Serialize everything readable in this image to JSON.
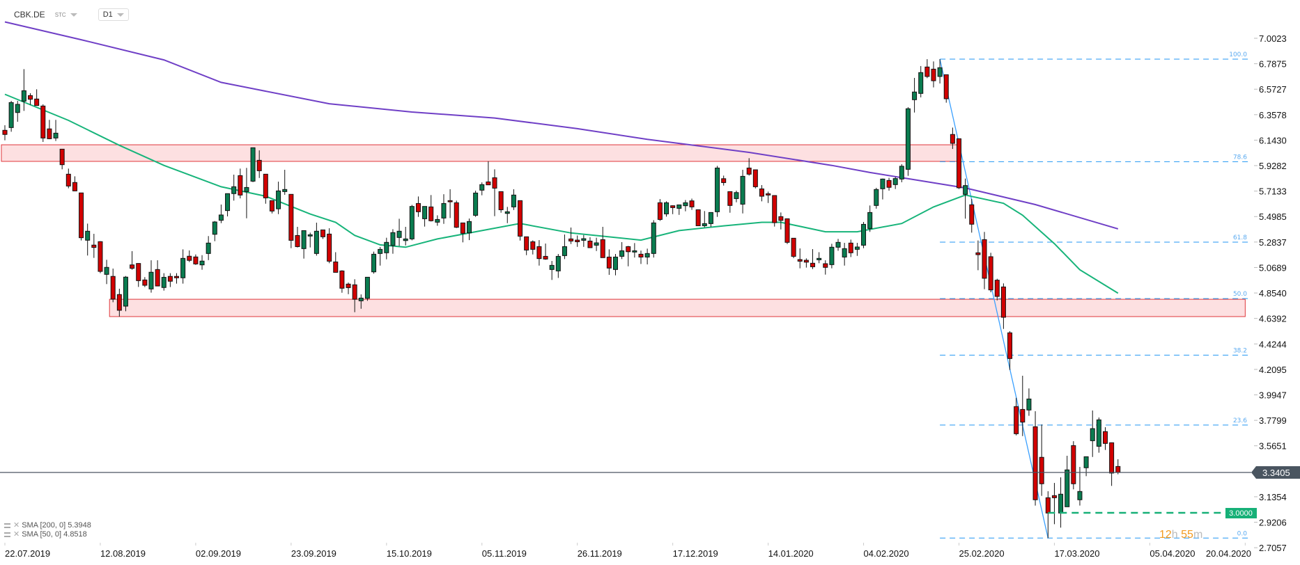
{
  "header": {
    "symbol": "CBK.DE",
    "instrument_type": "STC",
    "timeframe": "D1"
  },
  "indicators": [
    {
      "label": "SMA [200, 0] 5.3948",
      "color": "#6f3fc6"
    },
    {
      "label": "SMA [50, 0] 4.8518",
      "color": "#17b47a"
    }
  ],
  "current_price": {
    "value": "3.3405",
    "color": "#4a5560"
  },
  "alert_level": {
    "value": "3.0000",
    "color": "#16b077"
  },
  "countdown": {
    "hours": "12",
    "h": "h",
    "minutes": "55",
    "m": "m"
  },
  "colors": {
    "bull": "#0a7c50",
    "bear": "#d20000",
    "zone_fill": "#fde0e1",
    "zone_stroke": "#e0363a",
    "fib": "#2196f3"
  },
  "chart_data": {
    "type": "candlestick",
    "symbol": "CBK.DE",
    "ylim": [
      2.7057,
      7.0023
    ],
    "y_ticks": [
      "7.0023",
      "6.7875",
      "6.5727",
      "6.3578",
      "6.1430",
      "5.9282",
      "5.7133",
      "5.4985",
      "5.2837",
      "5.0689",
      "4.8540",
      "4.6392",
      "4.4244",
      "4.2095",
      "3.9947",
      "3.7799",
      "3.5651",
      "3.1354",
      "2.9206",
      "2.7057"
    ],
    "x_tick_labels": [
      "22.07.2019",
      "12.08.2019",
      "02.09.2019",
      "23.09.2019",
      "15.10.2019",
      "05.11.2019",
      "26.11.2019",
      "17.12.2019",
      "14.01.2020",
      "04.02.2020",
      "25.02.2020",
      "17.03.2020",
      "05.04.2020",
      "20.04.2020"
    ],
    "x_tick_every_bars": 15,
    "ohlc": [
      [
        6.226,
        6.269,
        6.142,
        6.191
      ],
      [
        6.249,
        6.474,
        6.214,
        6.46
      ],
      [
        6.376,
        6.474,
        6.298,
        6.445
      ],
      [
        6.472,
        6.742,
        6.39,
        6.56
      ],
      [
        6.519,
        6.539,
        6.441,
        6.488
      ],
      [
        6.49,
        6.572,
        6.435,
        6.435
      ],
      [
        6.431,
        6.445,
        6.128,
        6.161
      ],
      [
        6.238,
        6.314,
        6.151,
        6.155
      ],
      [
        6.161,
        6.314,
        6.136,
        6.202
      ],
      [
        6.067,
        6.067,
        5.897,
        5.936
      ],
      [
        5.856,
        5.903,
        5.737,
        5.756
      ],
      [
        5.786,
        5.838,
        5.713,
        5.715
      ],
      [
        5.698,
        5.698,
        5.297,
        5.32
      ],
      [
        5.299,
        5.439,
        5.17,
        5.375
      ],
      [
        5.258,
        5.353,
        5.15,
        5.238
      ],
      [
        5.287,
        5.291,
        5.021,
        5.036
      ],
      [
        5.011,
        5.134,
        4.929,
        5.07
      ],
      [
        4.994,
        5.06,
        4.776,
        4.802
      ],
      [
        4.841,
        4.89,
        4.655,
        4.708
      ],
      [
        4.743,
        4.997,
        4.7,
        4.988
      ],
      [
        5.091,
        5.207,
        5.05,
        5.062
      ],
      [
        5.103,
        5.105,
        4.905,
        4.958
      ],
      [
        4.964,
        4.988,
        4.904,
        4.919
      ],
      [
        4.888,
        5.13,
        4.857,
        5.029
      ],
      [
        5.052,
        5.13,
        4.91,
        4.913
      ],
      [
        4.9,
        5.021,
        4.874,
        4.986
      ],
      [
        4.994,
        5.021,
        4.904,
        4.953
      ],
      [
        4.994,
        5.021,
        4.933,
        4.982
      ],
      [
        4.982,
        5.222,
        4.933,
        5.146
      ],
      [
        5.164,
        5.213,
        5.115,
        5.129
      ],
      [
        5.158,
        5.179,
        5.091,
        5.099
      ],
      [
        5.091,
        5.173,
        5.05,
        5.123
      ],
      [
        5.187,
        5.334,
        5.131,
        5.275
      ],
      [
        5.349,
        5.461,
        5.291,
        5.453
      ],
      [
        5.467,
        5.6,
        5.443,
        5.512
      ],
      [
        5.549,
        5.692,
        5.5,
        5.692
      ],
      [
        5.692,
        5.852,
        5.633,
        5.75
      ],
      [
        5.844,
        5.903,
        5.652,
        5.68
      ],
      [
        5.709,
        5.909,
        5.484,
        5.744
      ],
      [
        5.797,
        6.079,
        5.789,
        6.079
      ],
      [
        5.973,
        6.057,
        5.824,
        5.885
      ],
      [
        5.856,
        5.856,
        5.607,
        5.656
      ],
      [
        5.633,
        5.633,
        5.525,
        5.545
      ],
      [
        5.564,
        5.793,
        5.519,
        5.715
      ],
      [
        5.709,
        5.893,
        5.682,
        5.727
      ],
      [
        5.686,
        5.686,
        5.232,
        5.298
      ],
      [
        5.339,
        5.412,
        5.238,
        5.245
      ],
      [
        5.228,
        5.38,
        5.144,
        5.38
      ],
      [
        5.334,
        5.363,
        5.238,
        5.345
      ],
      [
        5.187,
        5.447,
        5.169,
        5.375
      ],
      [
        5.386,
        5.388,
        5.31,
        5.328
      ],
      [
        5.351,
        5.4,
        5.105,
        5.122
      ],
      [
        5.116,
        5.198,
        5.028,
        5.028
      ],
      [
        5.04,
        5.046,
        4.856,
        4.894
      ],
      [
        4.929,
        4.942,
        4.844,
        4.899
      ],
      [
        4.923,
        4.97,
        4.692,
        4.801
      ],
      [
        4.788,
        4.842,
        4.721,
        4.811
      ],
      [
        4.809,
        4.987,
        4.788,
        4.987
      ],
      [
        5.032,
        5.203,
        5.017,
        5.181
      ],
      [
        5.187,
        5.242,
        5.085,
        5.222
      ],
      [
        5.193,
        5.32,
        5.138,
        5.281
      ],
      [
        5.255,
        5.392,
        5.185,
        5.363
      ],
      [
        5.322,
        5.48,
        5.251,
        5.375
      ],
      [
        5.296,
        5.412,
        5.255,
        5.31
      ],
      [
        5.31,
        5.597,
        5.298,
        5.584
      ],
      [
        5.609,
        5.668,
        5.496,
        5.539
      ],
      [
        5.48,
        5.584,
        5.414,
        5.584
      ],
      [
        5.58,
        5.68,
        5.457,
        5.463
      ],
      [
        5.451,
        5.509,
        5.421,
        5.474
      ],
      [
        5.486,
        5.687,
        5.437,
        5.609
      ],
      [
        5.633,
        5.729,
        5.486,
        5.623
      ],
      [
        5.615,
        5.633,
        5.402,
        5.408
      ],
      [
        5.445,
        5.447,
        5.281,
        5.357
      ],
      [
        5.361,
        5.482,
        5.3,
        5.457
      ],
      [
        5.509,
        5.717,
        5.496,
        5.697
      ],
      [
        5.721,
        5.787,
        5.678,
        5.768
      ],
      [
        5.791,
        5.965,
        5.766,
        5.766
      ],
      [
        5.826,
        5.897,
        5.502,
        5.738
      ],
      [
        5.709,
        5.709,
        5.531,
        5.556
      ],
      [
        5.525,
        5.58,
        5.443,
        5.539
      ],
      [
        5.58,
        5.729,
        5.554,
        5.68
      ],
      [
        5.633,
        5.633,
        5.296,
        5.333
      ],
      [
        5.328,
        5.328,
        5.173,
        5.216
      ],
      [
        5.286,
        5.298,
        5.179,
        5.222
      ],
      [
        5.245,
        5.3,
        5.085,
        5.144
      ],
      [
        5.163,
        5.271,
        5.134,
        5.14
      ],
      [
        5.052,
        5.124,
        4.964,
        5.087
      ],
      [
        5.04,
        5.183,
        4.981,
        5.163
      ],
      [
        5.169,
        5.347,
        5.14,
        5.245
      ],
      [
        5.31,
        5.406,
        5.267,
        5.292
      ],
      [
        5.3,
        5.339,
        5.243,
        5.286
      ],
      [
        5.298,
        5.343,
        5.243,
        5.312
      ],
      [
        5.292,
        5.324,
        5.234,
        5.236
      ],
      [
        5.257,
        5.32,
        5.208,
        5.277
      ],
      [
        5.304,
        5.412,
        5.152,
        5.152
      ],
      [
        5.157,
        5.222,
        5.007,
        5.064
      ],
      [
        5.052,
        5.183,
        5.003,
        5.157
      ],
      [
        5.163,
        5.283,
        5.14,
        5.21
      ],
      [
        5.245,
        5.251,
        5.079,
        5.202
      ],
      [
        5.199,
        5.275,
        5.153,
        5.21
      ],
      [
        5.181,
        5.212,
        5.099,
        5.157
      ],
      [
        5.157,
        5.228,
        5.095,
        5.187
      ],
      [
        5.187,
        5.468,
        5.153,
        5.445
      ],
      [
        5.615,
        5.646,
        5.462,
        5.474
      ],
      [
        5.521,
        5.627,
        5.498,
        5.615
      ],
      [
        5.59,
        5.593,
        5.519,
        5.574
      ],
      [
        5.568,
        5.597,
        5.513,
        5.597
      ],
      [
        5.59,
        5.638,
        5.543,
        5.615
      ],
      [
        5.631,
        5.65,
        5.555,
        5.58
      ],
      [
        5.556,
        5.558,
        5.421,
        5.421
      ],
      [
        5.421,
        5.545,
        5.408,
        5.439
      ],
      [
        5.439,
        5.533,
        5.412,
        5.533
      ],
      [
        5.539,
        5.926,
        5.496,
        5.908
      ],
      [
        5.818,
        5.844,
        5.76,
        5.785
      ],
      [
        5.709,
        5.709,
        5.531,
        5.592
      ],
      [
        5.65,
        5.717,
        5.619,
        5.701
      ],
      [
        5.603,
        5.893,
        5.525,
        5.838
      ],
      [
        5.908,
        5.991,
        5.844,
        5.856
      ],
      [
        5.893,
        5.893,
        5.736,
        5.75
      ],
      [
        5.732,
        5.764,
        5.627,
        5.67
      ],
      [
        5.691,
        5.709,
        5.613,
        5.68
      ],
      [
        5.676,
        5.676,
        5.414,
        5.447
      ],
      [
        5.498,
        5.533,
        5.39,
        5.466
      ],
      [
        5.48,
        5.48,
        5.267,
        5.281
      ],
      [
        5.316,
        5.316,
        5.148,
        5.163
      ],
      [
        5.136,
        5.23,
        5.062,
        5.122
      ],
      [
        5.13,
        5.146,
        5.068,
        5.114
      ],
      [
        5.105,
        5.224,
        5.056,
        5.075
      ],
      [
        5.134,
        5.198,
        5.105,
        5.146
      ],
      [
        5.101,
        5.13,
        5.009,
        5.07
      ],
      [
        5.093,
        5.269,
        5.062,
        5.24
      ],
      [
        5.24,
        5.31,
        5.21,
        5.281
      ],
      [
        5.157,
        5.277,
        5.085,
        5.228
      ],
      [
        5.275,
        5.304,
        5.157,
        5.193
      ],
      [
        5.222,
        5.277,
        5.167,
        5.242
      ],
      [
        5.257,
        5.453,
        5.232,
        5.433
      ],
      [
        5.398,
        5.592,
        5.369,
        5.533
      ],
      [
        5.592,
        5.741,
        5.565,
        5.727
      ],
      [
        5.733,
        5.819,
        5.643,
        5.815
      ],
      [
        5.803,
        5.825,
        5.717,
        5.745
      ],
      [
        5.768,
        5.833,
        5.731,
        5.819
      ],
      [
        5.815,
        5.94,
        5.788,
        5.923
      ],
      [
        5.897,
        6.421,
        5.842,
        6.408
      ],
      [
        6.484,
        6.668,
        6.376,
        6.549
      ],
      [
        6.537,
        6.768,
        6.504,
        6.713
      ],
      [
        6.76,
        6.826,
        6.666,
        6.68
      ],
      [
        6.742,
        6.807,
        6.588,
        6.644
      ],
      [
        6.68,
        6.826,
        6.621,
        6.754
      ],
      [
        6.695,
        6.695,
        6.459,
        6.492
      ],
      [
        6.191,
        6.249,
        6.069,
        6.116
      ],
      [
        6.155,
        6.155,
        5.731,
        5.741
      ],
      [
        5.686,
        5.819,
        5.481,
        5.76
      ],
      [
        5.598,
        5.647,
        5.363,
        5.434
      ],
      [
        5.193,
        5.297,
        5.046,
        5.177
      ],
      [
        5.304,
        5.369,
        4.886,
        4.978
      ],
      [
        5.16,
        5.193,
        4.86,
        4.88
      ],
      [
        4.962,
        4.974,
        4.792,
        4.825
      ],
      [
        4.905,
        4.935,
        4.551,
        4.649
      ],
      [
        4.518,
        4.532,
        4.205,
        4.301
      ],
      [
        3.896,
        3.97,
        3.653,
        3.667
      ],
      [
        3.872,
        4.156,
        3.647,
        3.765
      ],
      [
        3.867,
        4.049,
        3.818,
        3.96
      ],
      [
        3.726,
        3.857,
        3.061,
        3.11
      ],
      [
        3.468,
        3.745,
        3.143,
        3.245
      ],
      [
        3.127,
        3.182,
        2.787,
        2.998
      ],
      [
        3.145,
        3.252,
        2.904,
        3.127
      ],
      [
        2.998,
        3.299,
        2.875,
        3.157
      ],
      [
        3.051,
        3.481,
        3.051,
        3.362
      ],
      [
        3.567,
        3.604,
        3.198,
        3.245
      ],
      [
        3.11,
        3.387,
        3.061,
        3.18
      ],
      [
        3.38,
        3.475,
        3.309,
        3.473
      ],
      [
        3.608,
        3.863,
        3.471,
        3.71
      ],
      [
        3.561,
        3.804,
        3.507,
        3.784
      ],
      [
        3.685,
        3.722,
        3.53,
        3.585
      ],
      [
        3.591,
        3.593,
        3.227,
        3.335
      ],
      [
        3.391,
        3.452,
        3.325,
        3.3405
      ]
    ],
    "sma200": [
      [
        0,
        7.14
      ],
      [
        12,
        6.99
      ],
      [
        25,
        6.82
      ],
      [
        34,
        6.63
      ],
      [
        51,
        6.45
      ],
      [
        64,
        6.38
      ],
      [
        77,
        6.33
      ],
      [
        90,
        6.24
      ],
      [
        101,
        6.15
      ],
      [
        117,
        6.04
      ],
      [
        130,
        5.93
      ],
      [
        136,
        5.87
      ],
      [
        151,
        5.74
      ],
      [
        162,
        5.6
      ],
      [
        175,
        5.3948
      ]
    ],
    "sma50": [
      [
        0,
        6.53
      ],
      [
        10,
        6.31
      ],
      [
        18,
        6.1
      ],
      [
        25,
        5.93
      ],
      [
        34,
        5.75
      ],
      [
        41,
        5.67
      ],
      [
        48,
        5.52
      ],
      [
        52,
        5.45
      ],
      [
        55,
        5.34
      ],
      [
        59,
        5.26
      ],
      [
        63,
        5.24
      ],
      [
        68,
        5.31
      ],
      [
        75,
        5.38
      ],
      [
        81,
        5.44
      ],
      [
        89,
        5.36
      ],
      [
        100,
        5.3
      ],
      [
        106,
        5.38
      ],
      [
        113,
        5.42
      ],
      [
        119,
        5.45
      ],
      [
        122,
        5.45
      ],
      [
        129,
        5.37
      ],
      [
        134,
        5.37
      ],
      [
        141,
        5.44
      ],
      [
        146,
        5.58
      ],
      [
        151,
        5.68
      ],
      [
        157,
        5.61
      ],
      [
        160,
        5.51
      ],
      [
        165,
        5.27
      ],
      [
        169,
        5.05
      ],
      [
        175,
        4.8518
      ]
    ],
    "zones": [
      {
        "from_bar": 0,
        "to_bar": 150,
        "top": 6.104,
        "bottom": 5.964
      },
      {
        "from_bar": 17,
        "to_bar": 195,
        "top": 4.801,
        "bottom": 4.655
      }
    ],
    "fibonacci": {
      "from_bar": 147,
      "high": 6.826,
      "low_bar": 164,
      "low": 2.787,
      "levels": [
        {
          "label": "100.0",
          "ratio": 1.0
        },
        {
          "label": "78.6",
          "ratio": 0.786
        },
        {
          "label": "61.8",
          "ratio": 0.618
        },
        {
          "label": "50.0",
          "ratio": 0.5
        },
        {
          "label": "38.2",
          "ratio": 0.382
        },
        {
          "label": "23.6",
          "ratio": 0.236
        },
        {
          "label": "0.0",
          "ratio": 0.0
        }
      ]
    },
    "horizontal_lines": [
      {
        "price": 3.3405,
        "label": "3.3405"
      },
      {
        "price": 3.0,
        "label": "3.0000",
        "from_bar": 164
      }
    ]
  }
}
